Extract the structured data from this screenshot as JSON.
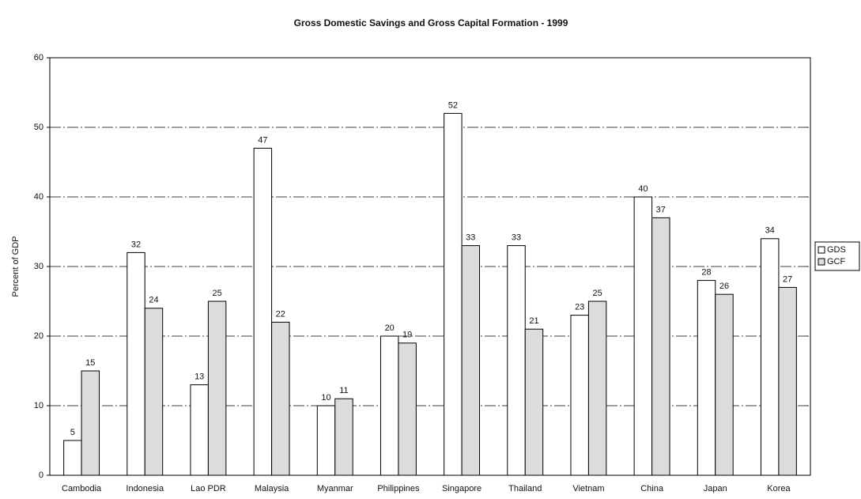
{
  "chart_data": {
    "type": "bar",
    "title": "Gross Domestic Savings and Gross Capital Formation - 1999",
    "y_label": "Percent of GDP",
    "categories": [
      "Cambodia",
      "Indonesia",
      "Lao PDR",
      "Malaysia",
      "Myanmar",
      "Philippines",
      "Singapore",
      "Thailand",
      "Vietnam",
      "China",
      "Japan",
      "Korea"
    ],
    "series": [
      {
        "name": "GDS",
        "color": "#ffffff",
        "values": [
          5,
          32,
          13,
          47,
          10,
          20,
          52,
          33,
          23,
          40,
          28,
          34
        ]
      },
      {
        "name": "GCF",
        "color": "#dcdcdc",
        "values": [
          15,
          24,
          25,
          22,
          11,
          19,
          33,
          21,
          25,
          37,
          26,
          27
        ]
      }
    ],
    "ylim": [
      0,
      60
    ],
    "yticks": [
      0,
      10,
      20,
      30,
      40,
      50,
      60
    ],
    "grid": true,
    "legend": "right"
  }
}
